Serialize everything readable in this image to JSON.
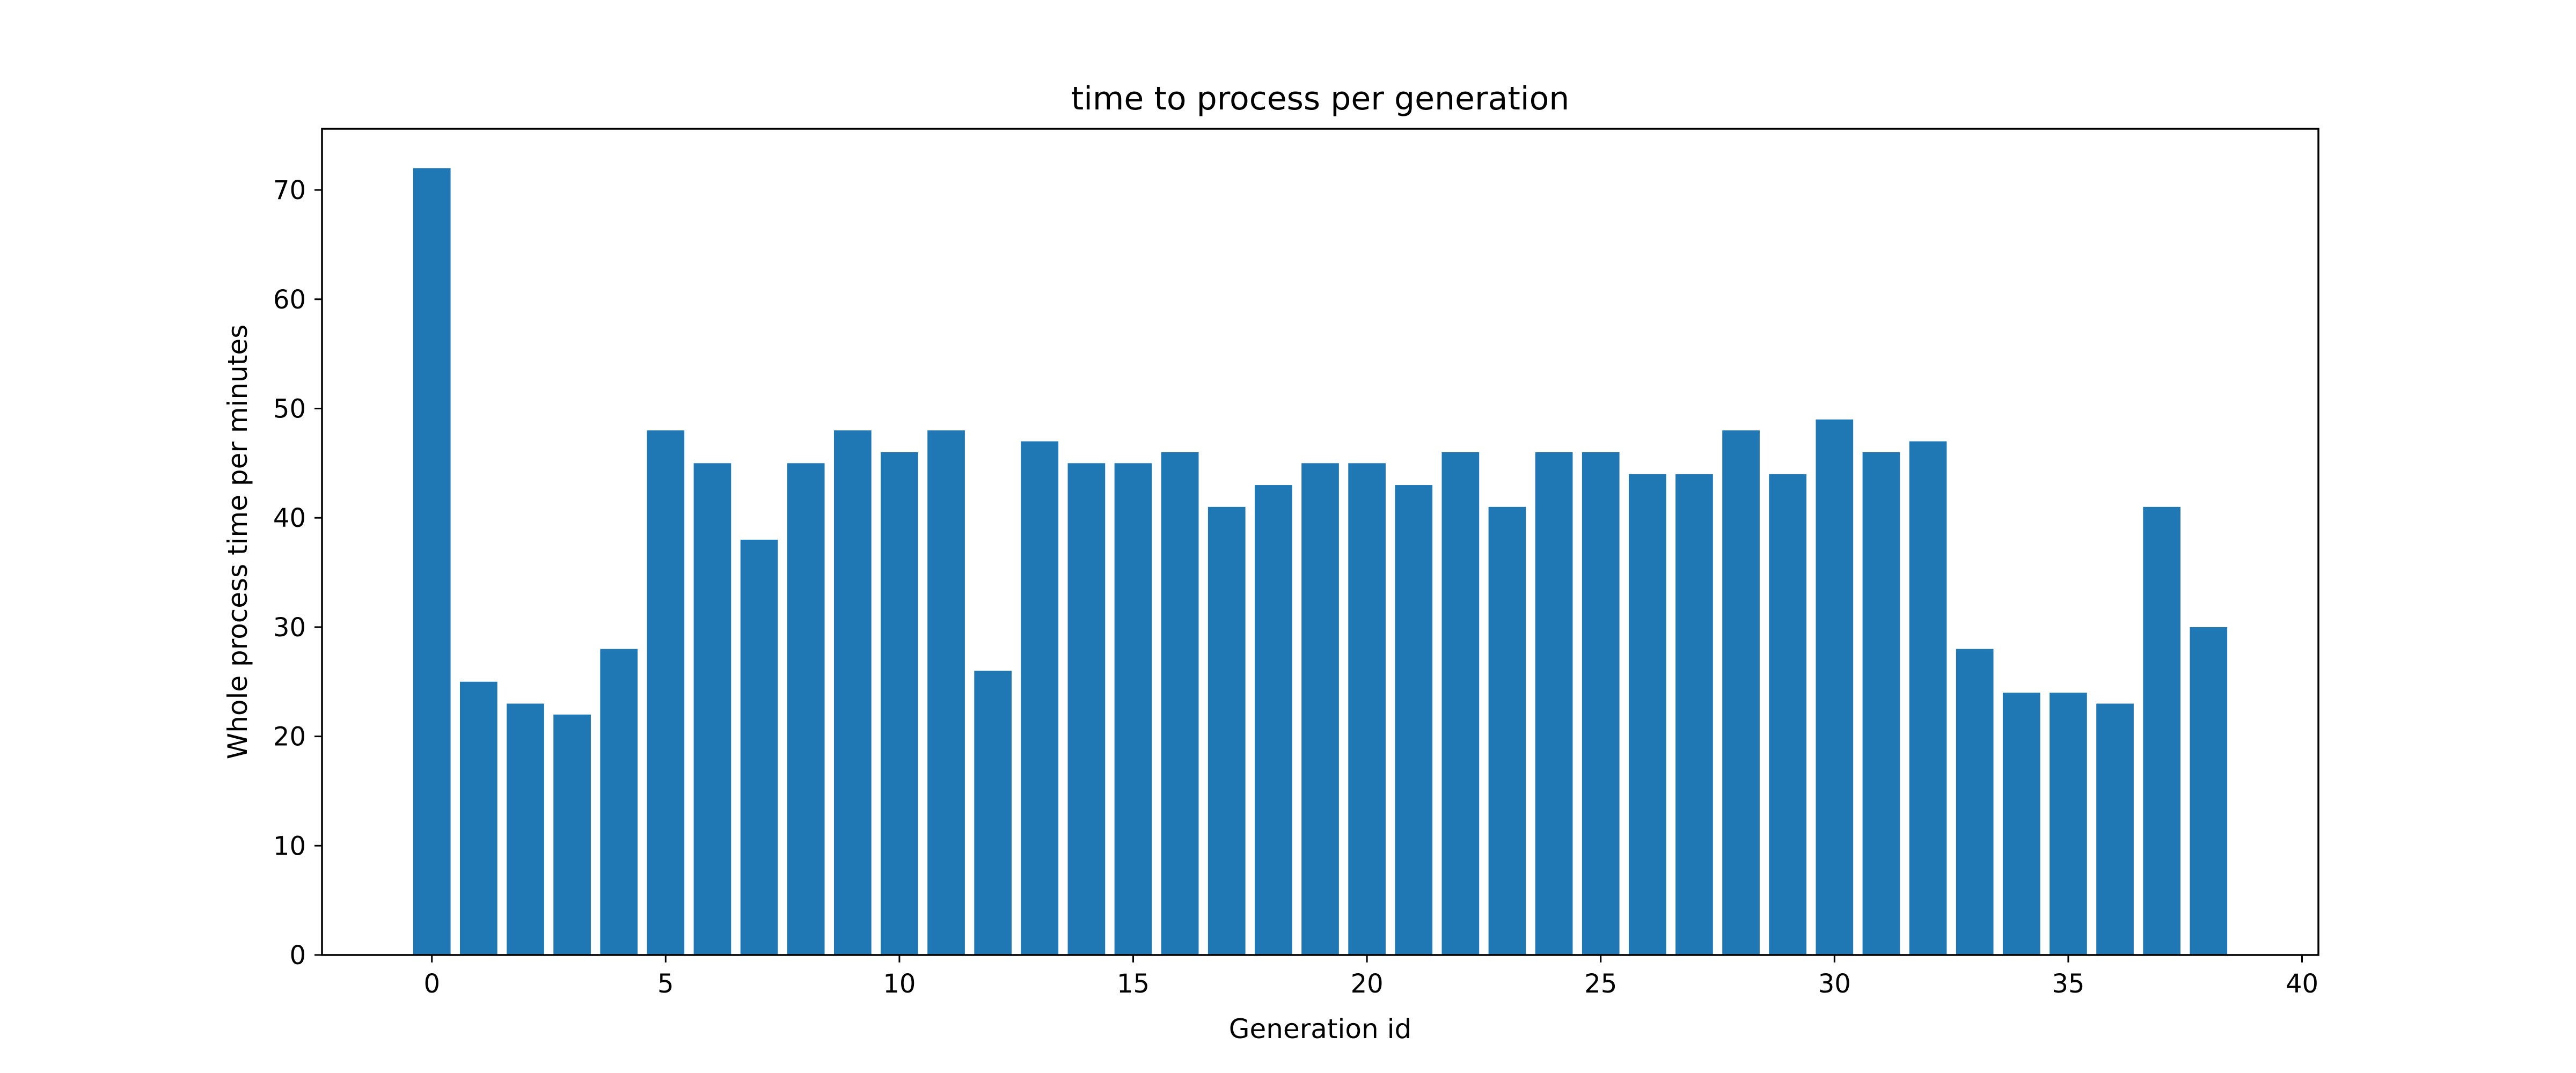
{
  "chart_data": {
    "type": "bar",
    "title": "time to process per generation",
    "xlabel": "Generation id",
    "ylabel": "Whole process time per minutes",
    "x": [
      0,
      1,
      2,
      3,
      4,
      5,
      6,
      7,
      8,
      9,
      10,
      11,
      12,
      13,
      14,
      15,
      16,
      17,
      18,
      19,
      20,
      21,
      22,
      23,
      24,
      25,
      26,
      27,
      28,
      29,
      30,
      31,
      32,
      33,
      34,
      35,
      36,
      37,
      38
    ],
    "values": [
      72,
      25,
      23,
      22,
      28,
      48,
      45,
      38,
      45,
      48,
      46,
      48,
      26,
      47,
      45,
      45,
      46,
      41,
      43,
      45,
      45,
      43,
      46,
      41,
      46,
      46,
      44,
      44,
      48,
      44,
      49,
      46,
      47,
      28,
      24,
      24,
      23,
      41,
      30
    ],
    "xlim": [
      -2.35,
      40.35
    ],
    "ylim": [
      0,
      75.6
    ],
    "xticks": [
      "0",
      "5",
      "10",
      "15",
      "20",
      "25",
      "30",
      "35",
      "40"
    ],
    "yticks": [
      "0",
      "10",
      "20",
      "30",
      "40",
      "50",
      "60",
      "70"
    ],
    "grid": false,
    "legend": "none",
    "bar_color": "#1f77b4"
  }
}
